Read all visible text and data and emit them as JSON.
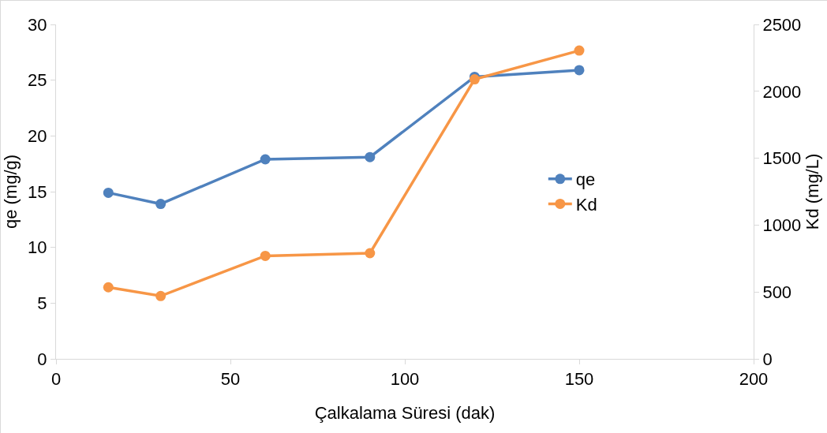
{
  "chart_data": {
    "type": "line",
    "xlabel": "Çalkalama Süresi (dak)",
    "ylabel": "qe (mg/g)",
    "y2label": "Kd (mg/L)",
    "x": [
      15,
      30,
      60,
      90,
      120,
      150
    ],
    "series": [
      {
        "name": "qe",
        "color": "#4f81bd",
        "values": [
          14.9,
          13.9,
          17.9,
          18.1,
          25.3,
          25.9
        ]
      },
      {
        "name": "Kd",
        "color": "#f79646",
        "values": [
          535,
          470,
          770,
          790,
          2090,
          2305
        ],
        "axis": "y2"
      }
    ],
    "xlim": [
      0,
      200
    ],
    "xticks": [
      0,
      50,
      100,
      150,
      200
    ],
    "ylim": [
      0,
      30
    ],
    "yticks": [
      0,
      5,
      10,
      15,
      20,
      25,
      30
    ],
    "y2lim": [
      0,
      2500
    ],
    "y2ticks": [
      0,
      500,
      1000,
      1500,
      2000,
      2500
    ],
    "grid": false,
    "legend": "right",
    "marker": "circle",
    "line_style": "solid"
  }
}
